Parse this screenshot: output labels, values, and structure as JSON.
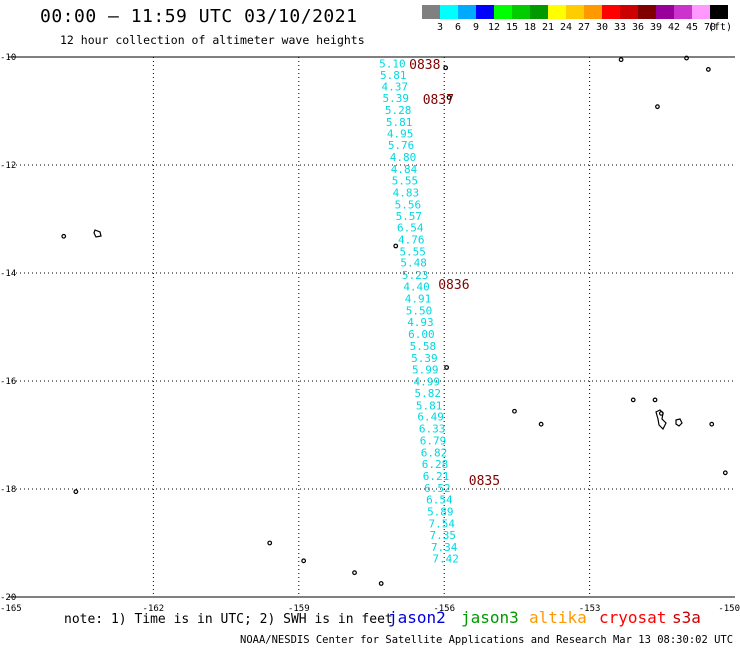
{
  "header": {
    "title": "00:00 – 11:59 UTC 03/10/2021",
    "subtitle": "12 hour collection of altimeter wave heights"
  },
  "legend": {
    "unit": "(ft)",
    "colors": [
      "#808080",
      "#00ffff",
      "#00aaff",
      "#0000ff",
      "#00ff00",
      "#00cc00",
      "#009900",
      "#ffff00",
      "#ffcc00",
      "#ff9900",
      "#ff0000",
      "#cc0000",
      "#800000",
      "#990099",
      "#cc33cc",
      "#ff99ff",
      "#000000"
    ],
    "labels": [
      "3",
      "6",
      "9",
      "12",
      "15",
      "18",
      "21",
      "24",
      "27",
      "30",
      "33",
      "36",
      "39",
      "42",
      "45",
      "70"
    ]
  },
  "chart_data": {
    "type": "scatter",
    "x_ticks": [
      "-165",
      "-162",
      "-159",
      "-156",
      "-153",
      "-150"
    ],
    "y_ticks": [
      "-10",
      "-12",
      "-14",
      "-16",
      "-18",
      "-20"
    ],
    "xlim": [
      -165,
      -150
    ],
    "ylim": [
      -20,
      -10
    ],
    "grid": true,
    "track": [
      {
        "swh": "5.10",
        "lon": -157.07,
        "lat": -10.12
      },
      {
        "swh": "5.81",
        "lon": -157.05,
        "lat": -10.33
      },
      {
        "swh": "4.37",
        "lon": -157.02,
        "lat": -10.55
      },
      {
        "swh": "5.39",
        "lon": -157.0,
        "lat": -10.76
      },
      {
        "swh": "5.28",
        "lon": -156.95,
        "lat": -10.98
      },
      {
        "swh": "5.81",
        "lon": -156.93,
        "lat": -11.2
      },
      {
        "swh": "4.95",
        "lon": -156.91,
        "lat": -11.42
      },
      {
        "swh": "5.76",
        "lon": -156.89,
        "lat": -11.63
      },
      {
        "swh": "4.80",
        "lon": -156.85,
        "lat": -11.85
      },
      {
        "swh": "4.84",
        "lon": -156.83,
        "lat": -12.07
      },
      {
        "swh": "5.55",
        "lon": -156.81,
        "lat": -12.29
      },
      {
        "swh": "4.83",
        "lon": -156.79,
        "lat": -12.51
      },
      {
        "swh": "5.56",
        "lon": -156.75,
        "lat": -12.73
      },
      {
        "swh": "5.57",
        "lon": -156.73,
        "lat": -12.94
      },
      {
        "swh": "6.54",
        "lon": -156.7,
        "lat": -13.16
      },
      {
        "swh": "4.76",
        "lon": -156.68,
        "lat": -13.38
      },
      {
        "swh": "5.55",
        "lon": -156.65,
        "lat": -13.6
      },
      {
        "swh": "5.48",
        "lon": -156.63,
        "lat": -13.81
      },
      {
        "swh": "5.23",
        "lon": -156.6,
        "lat": -14.04
      },
      {
        "swh": "4.40",
        "lon": -156.57,
        "lat": -14.25
      },
      {
        "swh": "4.91",
        "lon": -156.54,
        "lat": -14.47
      },
      {
        "swh": "5.50",
        "lon": -156.52,
        "lat": -14.69
      },
      {
        "swh": "4.93",
        "lon": -156.49,
        "lat": -14.91
      },
      {
        "swh": "6.00",
        "lon": -156.47,
        "lat": -15.13
      },
      {
        "swh": "5.58",
        "lon": -156.44,
        "lat": -15.35
      },
      {
        "swh": "5.39",
        "lon": -156.41,
        "lat": -15.57
      },
      {
        "swh": "5.99",
        "lon": -156.39,
        "lat": -15.79
      },
      {
        "swh": "4.99",
        "lon": -156.36,
        "lat": -16.01
      },
      {
        "swh": "5.82",
        "lon": -156.34,
        "lat": -16.22
      },
      {
        "swh": "5.81",
        "lon": -156.31,
        "lat": -16.45
      },
      {
        "swh": "6.49",
        "lon": -156.28,
        "lat": -16.66
      },
      {
        "swh": "6.33",
        "lon": -156.25,
        "lat": -16.88
      },
      {
        "swh": "6.79",
        "lon": -156.23,
        "lat": -17.1
      },
      {
        "swh": "6.82",
        "lon": -156.21,
        "lat": -17.32
      },
      {
        "swh": "6.28",
        "lon": -156.19,
        "lat": -17.54
      },
      {
        "swh": "6.21",
        "lon": -156.17,
        "lat": -17.76
      },
      {
        "swh": "6.52",
        "lon": -156.14,
        "lat": -17.98
      },
      {
        "swh": "6.54",
        "lon": -156.1,
        "lat": -18.19
      },
      {
        "swh": "5.89",
        "lon": -156.08,
        "lat": -18.42
      },
      {
        "swh": "7.54",
        "lon": -156.05,
        "lat": -18.64
      },
      {
        "swh": "7.35",
        "lon": -156.03,
        "lat": -18.85
      },
      {
        "swh": "7.34",
        "lon": -156.0,
        "lat": -19.07
      },
      {
        "swh": "7.42",
        "lon": -155.97,
        "lat": -19.29
      }
    ],
    "times": [
      {
        "label": "0838",
        "lon": -156.4,
        "lat": -10.15
      },
      {
        "label": "0837",
        "lon": -156.12,
        "lat": -10.8
      },
      {
        "label": "0836",
        "lon": -155.8,
        "lat": -14.22
      },
      {
        "label": "0835",
        "lon": -155.17,
        "lat": -17.85
      }
    ]
  },
  "note": "note: 1) Time is in UTC; 2) SWH is in feet",
  "satellites": [
    {
      "name": "jason2",
      "color": "#0000dd"
    },
    {
      "name": "jason3",
      "color": "#009900"
    },
    {
      "name": "altika",
      "color": "#ff9900"
    },
    {
      "name": "cryosat",
      "color": "#ff0000"
    },
    {
      "name": "s3a",
      "color": "#cc0000"
    }
  ],
  "footer": "NOAA/NESDIS Center for Satellite Applications and Research   Mar 13 08:30:02 UTC 2021"
}
